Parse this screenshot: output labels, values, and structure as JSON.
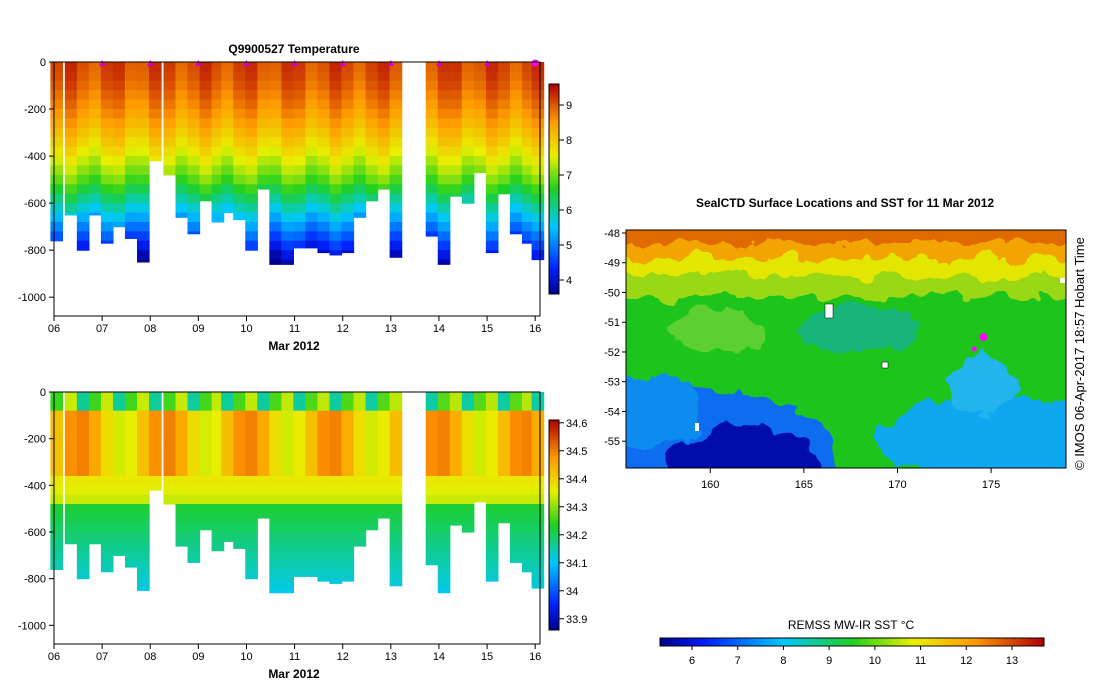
{
  "chart_data": [
    {
      "type": "heatmap",
      "title": "Q9900527  Temperature",
      "xlabel": "Mar 2012",
      "ylabel": "",
      "x_ticks": [
        "06",
        "07",
        "08",
        "09",
        "10",
        "11",
        "12",
        "13",
        "14",
        "15",
        "16"
      ],
      "x_range": [
        6,
        16.1
      ],
      "y_ticks": [
        0,
        -200,
        -400,
        -600,
        -800,
        -1000
      ],
      "y_range": [
        -1080,
        0
      ],
      "colorbar": {
        "ticks": [
          4,
          5,
          6,
          7,
          8,
          9
        ],
        "range": [
          3.6,
          9.6
        ]
      },
      "profile_times": [
        6.05,
        6.35,
        6.6,
        6.85,
        7.1,
        7.35,
        7.6,
        7.85,
        8.1,
        8.4,
        8.65,
        8.9,
        9.15,
        9.4,
        9.6,
        9.85,
        10.1,
        10.35,
        10.6,
        10.85,
        11.1,
        11.35,
        11.6,
        11.85,
        12.1,
        12.35,
        12.6,
        12.85,
        13.1,
        13.85,
        14.1,
        14.35,
        14.6,
        14.85,
        15.1,
        15.35,
        15.6,
        15.85,
        16.05
      ],
      "profile_max_depth": [
        760,
        650,
        800,
        650,
        770,
        700,
        750,
        850,
        420,
        480,
        660,
        730,
        590,
        680,
        640,
        670,
        800,
        540,
        860,
        860,
        790,
        790,
        810,
        820,
        810,
        660,
        590,
        540,
        830,
        740,
        860,
        570,
        600,
        470,
        810,
        560,
        730,
        770,
        840
      ],
      "markers_x": [
        7,
        8,
        9,
        10,
        11,
        12,
        13,
        14,
        15,
        16
      ]
    },
    {
      "type": "heatmap",
      "title": "",
      "xlabel": "Mar 2012",
      "ylabel": "",
      "x_ticks": [
        "06",
        "07",
        "08",
        "09",
        "10",
        "11",
        "12",
        "13",
        "14",
        "15",
        "16"
      ],
      "x_range": [
        6,
        16.1
      ],
      "y_ticks": [
        0,
        -200,
        -400,
        -600,
        -800,
        -1000
      ],
      "y_range": [
        -1080,
        0
      ],
      "colorbar": {
        "ticks": [
          33.9,
          34,
          34.1,
          34.2,
          34.3,
          34.4,
          34.5,
          34.6
        ],
        "range": [
          33.86,
          34.61
        ]
      }
    },
    {
      "type": "heatmap",
      "title": "SealCTD Surface Locations and SST for 11 Mar 2012",
      "xlabel": "",
      "ylabel": "",
      "x_ticks": [
        160,
        165,
        170,
        175
      ],
      "x_range": [
        155.5,
        179
      ],
      "y_ticks": [
        -48,
        -49,
        -50,
        -51,
        -52,
        -53,
        -54,
        -55
      ],
      "y_range": [
        -55.9,
        -47.9
      ],
      "colorbar": {
        "label": "REMSS MW-IR SST °C",
        "ticks": [
          6,
          7,
          8,
          9,
          10,
          11,
          12,
          13
        ],
        "range": [
          5.3,
          13.7
        ]
      },
      "points": [
        {
          "lon": 174.6,
          "lat": -51.5,
          "kind": "current"
        },
        {
          "lon": 174.1,
          "lat": -51.9,
          "kind": "track"
        }
      ]
    }
  ],
  "credit": "©  IMOS 06-Apr-2017 18:57 Hobart Time"
}
